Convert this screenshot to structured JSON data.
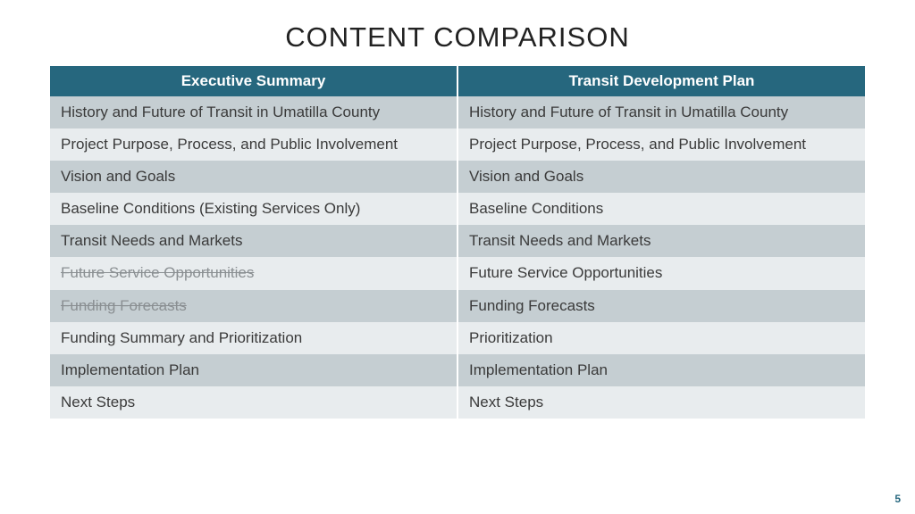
{
  "title": "CONTENT COMPARISON",
  "page_number": "5",
  "styling": {
    "header_bg": "#26677e",
    "header_text": "#ffffff",
    "row_dark_bg": "#c5ced2",
    "row_light_bg": "#e8ecee",
    "body_text_color": "#3a3a3a",
    "struck_text_color": "#8a8f92",
    "title_fontsize_pt": 24,
    "header_fontsize_pt": 13,
    "cell_fontsize_pt": 13
  },
  "table": {
    "columns": [
      "Executive Summary",
      "Transit Development Plan"
    ],
    "rows": [
      {
        "left": "History and Future of Transit in Umatilla County",
        "left_struck": false,
        "right": "History and Future of Transit in Umatilla County"
      },
      {
        "left": "Project Purpose, Process, and Public Involvement",
        "left_struck": false,
        "right": "Project Purpose, Process, and Public Involvement"
      },
      {
        "left": "Vision and Goals",
        "left_struck": false,
        "right": "Vision and Goals"
      },
      {
        "left": "Baseline Conditions (Existing Services Only)",
        "left_struck": false,
        "right": "Baseline Conditions"
      },
      {
        "left": "Transit Needs and Markets",
        "left_struck": false,
        "right": "Transit Needs and Markets"
      },
      {
        "left": "Future Service Opportunities",
        "left_struck": true,
        "right": "Future Service Opportunities"
      },
      {
        "left": "Funding Forecasts",
        "left_struck": true,
        "right": "Funding Forecasts"
      },
      {
        "left": "Funding Summary and Prioritization",
        "left_struck": false,
        "right": "Prioritization"
      },
      {
        "left": "Implementation Plan",
        "left_struck": false,
        "right": "Implementation Plan"
      },
      {
        "left": "Next Steps",
        "left_struck": false,
        "right": "Next Steps"
      }
    ]
  }
}
